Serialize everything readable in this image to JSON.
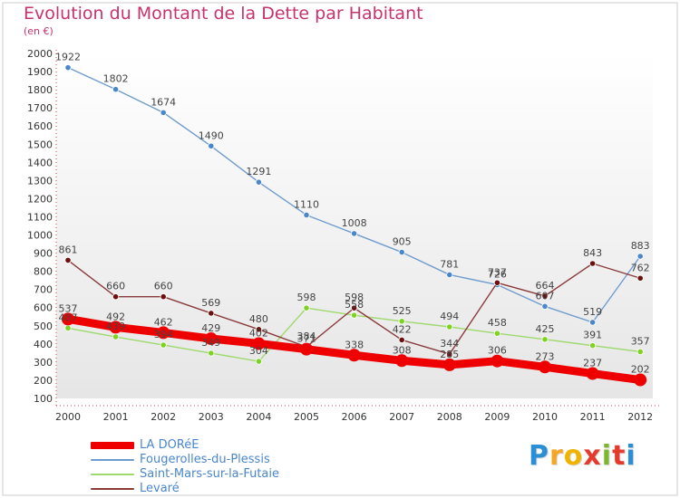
{
  "title": "Evolution du Montant de la Dette par Habitant",
  "subtitle": "(en €)",
  "logo": {
    "letters": [
      "P",
      "r",
      "o",
      "x",
      "i",
      "t",
      "i"
    ],
    "colors": [
      "#2b8fd6",
      "#f5a623",
      "#f0b400",
      "#e53b2c",
      "#7cb82f",
      "#e53b2c",
      "#2b8fd6"
    ]
  },
  "chart_data": {
    "type": "line",
    "title": "Evolution du Montant de la Dette par Habitant",
    "subtitle": "(en €)",
    "xlabel": "",
    "ylabel": "",
    "x": [
      "2000",
      "2001",
      "2002",
      "2003",
      "2004",
      "2005",
      "2006",
      "2007",
      "2008",
      "2009",
      "2010",
      "2011",
      "2012"
    ],
    "ylim": [
      100,
      2000
    ],
    "yticks": [
      100,
      200,
      300,
      400,
      500,
      600,
      700,
      800,
      900,
      1000,
      1100,
      1200,
      1300,
      1400,
      1500,
      1600,
      1700,
      1800,
      1900,
      2000
    ],
    "grid": false,
    "legend_position": "bottom-left",
    "series": [
      {
        "name": "LA DORéE",
        "color": "#ee0000",
        "marker": "#ee0000",
        "width": 9,
        "values": [
          537,
          492,
          462,
          429,
          402,
          371,
          338,
          308,
          285,
          306,
          273,
          237,
          202
        ],
        "labels": [
          "537",
          "492",
          "462",
          "429",
          "402",
          "371",
          "338",
          "308",
          "285",
          "306",
          "273",
          "237",
          "202"
        ]
      },
      {
        "name": "Fougerolles-du-Plessis",
        "color": "#6f9ccf",
        "marker": "#4a86cc",
        "width": 1.4,
        "values": [
          1922,
          1802,
          1674,
          1490,
          1291,
          1110,
          1008,
          905,
          781,
          726,
          607,
          519,
          883
        ],
        "labels": [
          "1922",
          "1802",
          "1674",
          "1490",
          "1291",
          "1110",
          "1008",
          "905",
          "781",
          "726",
          "607",
          "519",
          "883"
        ]
      },
      {
        "name": "Saint-Mars-sur-la-Futaie",
        "color": "#9ed96e",
        "marker": "#7ed321",
        "width": 1.4,
        "values": [
          487,
          439,
          394,
          349,
          304,
          598,
          558,
          525,
          494,
          458,
          425,
          391,
          357
        ],
        "labels": [
          "487",
          "439",
          "394",
          "349",
          "304",
          "598",
          "558",
          "525",
          "494",
          "458",
          "425",
          "391",
          "357"
        ]
      },
      {
        "name": "Levaré",
        "color": "#8b3a3a",
        "marker": "#6b0f0f",
        "width": 1.4,
        "values": [
          861,
          660,
          660,
          569,
          480,
          384,
          598,
          422,
          344,
          737,
          664,
          843,
          762
        ],
        "labels": [
          "861",
          "660",
          "660",
          "569",
          "480",
          "384",
          "598",
          "422",
          "344",
          "737",
          "664",
          "843",
          "762"
        ]
      }
    ]
  },
  "legend": [
    {
      "label": "LA DORéE",
      "color": "#ee0000",
      "thickness": 8
    },
    {
      "label": "Fougerolles-du-Plessis",
      "color": "#6f9ccf",
      "thickness": 2
    },
    {
      "label": "Saint-Mars-sur-la-Futaie",
      "color": "#9ed96e",
      "thickness": 2
    },
    {
      "label": "Levaré",
      "color": "#8b3a3a",
      "thickness": 2
    }
  ]
}
